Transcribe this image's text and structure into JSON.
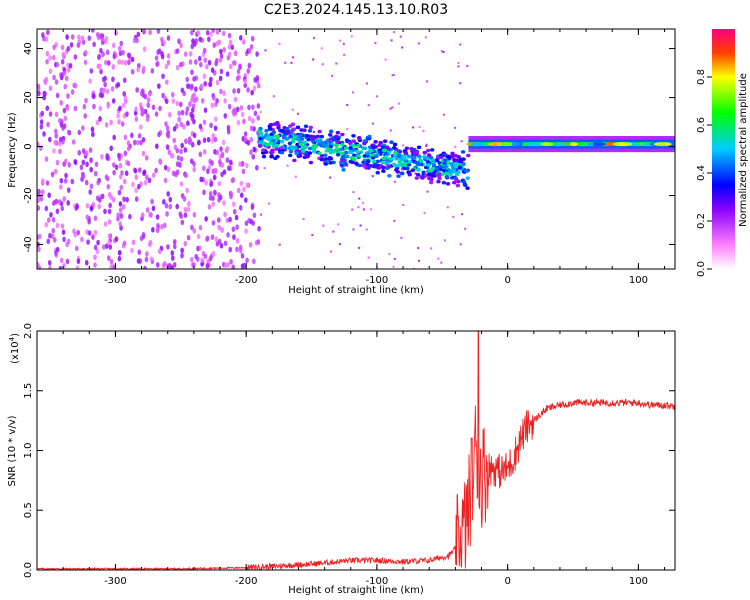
{
  "title": "C2E3.2024.145.13.10.R03",
  "chart_data": [
    {
      "type": "heatmap",
      "xlabel": "Height of straight line (km)",
      "ylabel": "Frequency (Hz)",
      "xlim": [
        -360,
        128
      ],
      "ylim": [
        -50,
        48
      ],
      "xticks": [
        "-300",
        "-200",
        "-100",
        "0",
        "100"
      ],
      "yticks": [
        "-40",
        "-20",
        "0",
        "20",
        "40"
      ],
      "colorbar": {
        "label": "Normalized spectral amplitude",
        "range": [
          0,
          1
        ],
        "ticks": [
          "0.0",
          "0.2",
          "0.4",
          "0.6",
          "0.8"
        ]
      },
      "description_regions": [
        {
          "x_range": [
            -360,
            -190
          ],
          "frequency_range": [
            -50,
            48
          ],
          "amplitude": [
            0.1,
            0.25
          ],
          "pattern": "broadband noise"
        },
        {
          "x_range": [
            -190,
            -30
          ],
          "frequency_center": [
            4,
            -10
          ],
          "frequency_halfwidth": 8,
          "amplitude": [
            0.2,
            0.45
          ],
          "pattern": "descending scintillating signal"
        },
        {
          "x_range": [
            -30,
            128
          ],
          "frequency_center": 1,
          "frequency_halfwidth": 1.5,
          "amplitude": [
            0.4,
            0.9
          ],
          "pattern": "steady carrier"
        }
      ]
    },
    {
      "type": "line",
      "xlabel": "Height of straight line (km)",
      "ylabel": "SNR (10 * v/v)",
      "scale_label": "(x10",
      "scale_exponent": "4",
      "scale_suffix": ")",
      "xlim": [
        -360,
        128
      ],
      "ylim": [
        0,
        2.0
      ],
      "xticks": [
        "-300",
        "-200",
        "-100",
        "0",
        "100"
      ],
      "yticks": [
        "0.0",
        "0.5",
        "1.0",
        "1.5",
        "2.0"
      ],
      "color": "#ee2222",
      "series": [
        {
          "x": [
            -360,
            -300,
            -250,
            -200,
            -180,
            -150,
            -120,
            -100,
            -80,
            -60,
            -45,
            -38,
            -33,
            -30,
            -28,
            -26,
            -24,
            -22,
            -20,
            -15,
            -10,
            -5,
            0,
            5,
            10,
            15,
            20,
            25,
            30,
            40,
            50,
            60,
            80,
            100,
            110,
            120,
            128
          ],
          "y": [
            0.01,
            0.01,
            0.01,
            0.02,
            0.03,
            0.05,
            0.08,
            0.08,
            0.07,
            0.08,
            0.12,
            0.2,
            0.35,
            0.5,
            0.7,
            0.85,
            1.1,
            0.75,
            0.8,
            0.85,
            0.85,
            0.82,
            0.85,
            0.95,
            1.1,
            1.2,
            1.25,
            1.3,
            1.35,
            1.38,
            1.4,
            1.4,
            1.4,
            1.4,
            1.38,
            1.38,
            1.37
          ]
        }
      ]
    }
  ]
}
